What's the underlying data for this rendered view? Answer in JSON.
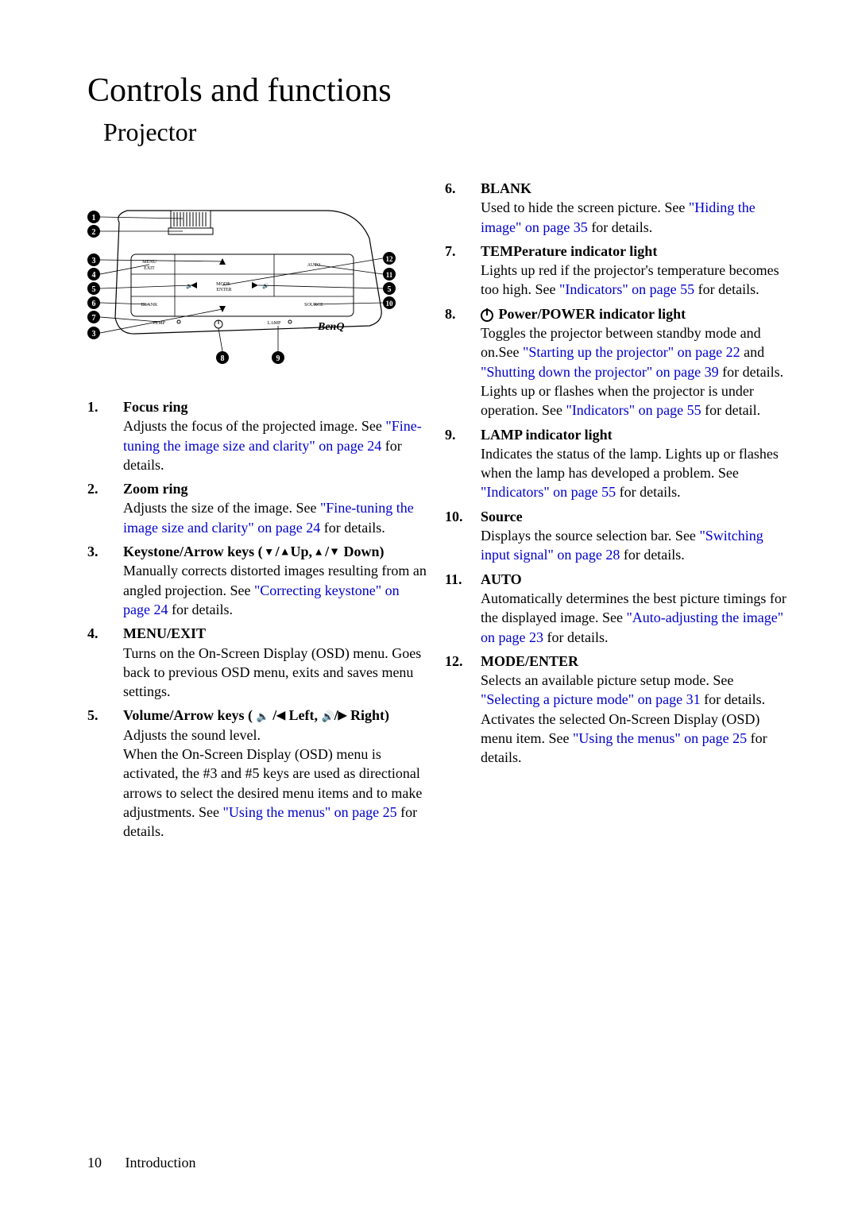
{
  "title_main": "Controls and functions",
  "title_sub": "Projector",
  "footer_page": "10",
  "footer_section": "Introduction",
  "colors": {
    "text": "#000000",
    "link": "#0000cc",
    "bg": "#ffffff"
  },
  "diagram": {
    "labels": [
      "1",
      "2",
      "3",
      "4",
      "5",
      "6",
      "7",
      "8",
      "9",
      "10",
      "11",
      "12",
      "5"
    ],
    "brand": "BenQ",
    "panel_labels": [
      "MENU EXIT",
      "MODE ENTER",
      "AUTO",
      "BLANK",
      "SOURCE",
      "TEMP",
      "LAMP"
    ]
  },
  "left_items": [
    {
      "num": "1.",
      "heading": "Focus ring",
      "segments": [
        {
          "t": "Adjusts the focus of the projected image. See "
        },
        {
          "t": "\"Fine-tuning the image size and clarity\" on page 24",
          "link": true
        },
        {
          "t": " for details."
        }
      ]
    },
    {
      "num": "2.",
      "heading": "Zoom ring",
      "segments": [
        {
          "t": "Adjusts the size of the image. See "
        },
        {
          "t": "\"Fine-tuning the image size and clarity\" on page 24",
          "link": true
        },
        {
          "t": " for details."
        }
      ]
    },
    {
      "num": "3.",
      "heading_parts": [
        {
          "t": "Keystone/Arrow keys ( "
        },
        {
          "icon": "trap-down"
        },
        {
          "t": " /"
        },
        {
          "icon": "up"
        },
        {
          "t": "Up,  "
        },
        {
          "icon": "trap-up"
        },
        {
          "t": " /"
        },
        {
          "icon": "down"
        },
        {
          "t": " Down)"
        }
      ],
      "segments": [
        {
          "t": "Manually corrects distorted images resulting from an angled projection. See "
        },
        {
          "t": "\"Correcting keystone\" on page 24",
          "link": true
        },
        {
          "t": " for details."
        }
      ]
    },
    {
      "num": "4.",
      "heading": "MENU/EXIT",
      "segments": [
        {
          "t": "Turns on the On-Screen Display (OSD) menu. Goes back to previous OSD menu, exits and saves menu settings."
        }
      ]
    },
    {
      "num": "5.",
      "heading_parts": [
        {
          "t": "Volume/Arrow keys ( "
        },
        {
          "icon": "spk-low"
        },
        {
          "t": " /"
        },
        {
          "icon": "left"
        },
        {
          "t": " Left, "
        },
        {
          "icon": "spk-high"
        },
        {
          "t": "/"
        },
        {
          "icon": "right"
        },
        {
          "t": " Right)"
        }
      ],
      "segments": [
        {
          "t": "Adjusts the sound level."
        },
        {
          "br": true
        },
        {
          "t": "When the On-Screen Display (OSD) menu is activated, the #3 and #5 keys are used as directional arrows to select the desired menu items and to make adjustments. See "
        },
        {
          "t": "\"Using the menus\" on page 25",
          "link": true
        },
        {
          "t": " for details."
        }
      ]
    }
  ],
  "right_items": [
    {
      "num": "6.",
      "heading": "BLANK",
      "segments": [
        {
          "t": "Used to hide the screen picture. See "
        },
        {
          "t": "\"Hiding the image\" on page 35",
          "link": true
        },
        {
          "t": " for details."
        }
      ]
    },
    {
      "num": "7.",
      "heading": "TEMPerature indicator light",
      "segments": [
        {
          "t": "Lights up red if the projector's temperature becomes too high. See "
        },
        {
          "t": "\"Indicators\" on page 55",
          "link": true
        },
        {
          "t": " for details."
        }
      ]
    },
    {
      "num": "8.",
      "heading_parts": [
        {
          "icon": "power"
        },
        {
          "t": " Power/POWER indicator light"
        }
      ],
      "segments": [
        {
          "t": "Toggles the projector between standby mode and on.See "
        },
        {
          "t": "\"Starting up the projector\" on page 22",
          "link": true
        },
        {
          "t": " and "
        },
        {
          "t": "\"Shutting down the projector\" on page 39",
          "link": true
        },
        {
          "t": " for details."
        },
        {
          "br": true
        },
        {
          "t": "Lights up or flashes when the projector is under operation. See "
        },
        {
          "t": "\"Indicators\" on page 55",
          "link": true
        },
        {
          "t": " for detail."
        }
      ]
    },
    {
      "num": "9.",
      "heading": "LAMP indicator light",
      "segments": [
        {
          "t": "Indicates the status of the lamp. Lights up or flashes when the lamp has developed a problem. See "
        },
        {
          "t": "\"Indicators\" on page 55",
          "link": true
        },
        {
          "t": " for details."
        }
      ]
    },
    {
      "num": "10.",
      "heading": "Source",
      "segments": [
        {
          "t": "Displays the source selection bar. See "
        },
        {
          "t": "\"Switching input signal\" on page 28",
          "link": true
        },
        {
          "t": " for details."
        }
      ]
    },
    {
      "num": "11.",
      "heading": "AUTO",
      "segments": [
        {
          "t": "Automatically determines the best picture timings for the displayed image. See "
        },
        {
          "t": "\"Auto-adjusting the image\" on page 23",
          "link": true
        },
        {
          "t": " for details."
        }
      ]
    },
    {
      "num": "12.",
      "heading": "MODE/ENTER",
      "segments": [
        {
          "t": "Selects an available picture setup mode. See "
        },
        {
          "t": "\"Selecting a picture mode\" on page 31",
          "link": true
        },
        {
          "t": " for details."
        },
        {
          "br": true
        },
        {
          "t": "Activates the selected On-Screen Display (OSD) menu item. See "
        },
        {
          "t": "\"Using the menus\" on page 25",
          "link": true
        },
        {
          "t": " for details."
        }
      ]
    }
  ]
}
